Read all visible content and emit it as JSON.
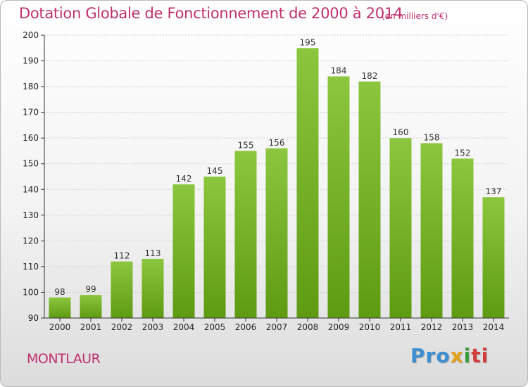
{
  "header": {
    "title": "Dotation Globale de Fonctionnement de 2000 à 2014",
    "subtitle": "(en milliers d'€)"
  },
  "commune": "MONTLAUR",
  "logo": {
    "parts": [
      "Pro",
      "x",
      "i",
      "ti"
    ],
    "colors": [
      "#3b8ed1",
      "#e3a21a",
      "#3a9a3c",
      "#d43b3b"
    ]
  },
  "chart_data": {
    "type": "bar",
    "categories": [
      "2000",
      "2001",
      "2002",
      "2003",
      "2004",
      "2005",
      "2006",
      "2007",
      "2008",
      "2009",
      "2010",
      "2011",
      "2012",
      "2013",
      "2014"
    ],
    "values": [
      98,
      99,
      112,
      113,
      142,
      145,
      155,
      156,
      195,
      184,
      182,
      160,
      158,
      152,
      137
    ],
    "title": "Dotation Globale de Fonctionnement de 2000 à 2014",
    "subtitle": "(en milliers d'€)",
    "xlabel": "",
    "ylabel": "",
    "ylim": [
      90,
      200
    ],
    "yticks": [
      90,
      100,
      110,
      120,
      130,
      140,
      150,
      160,
      170,
      180,
      190,
      200
    ],
    "grid": true,
    "bar_color": "#8cc63f",
    "bar_color_dark": "#5e9a12"
  }
}
